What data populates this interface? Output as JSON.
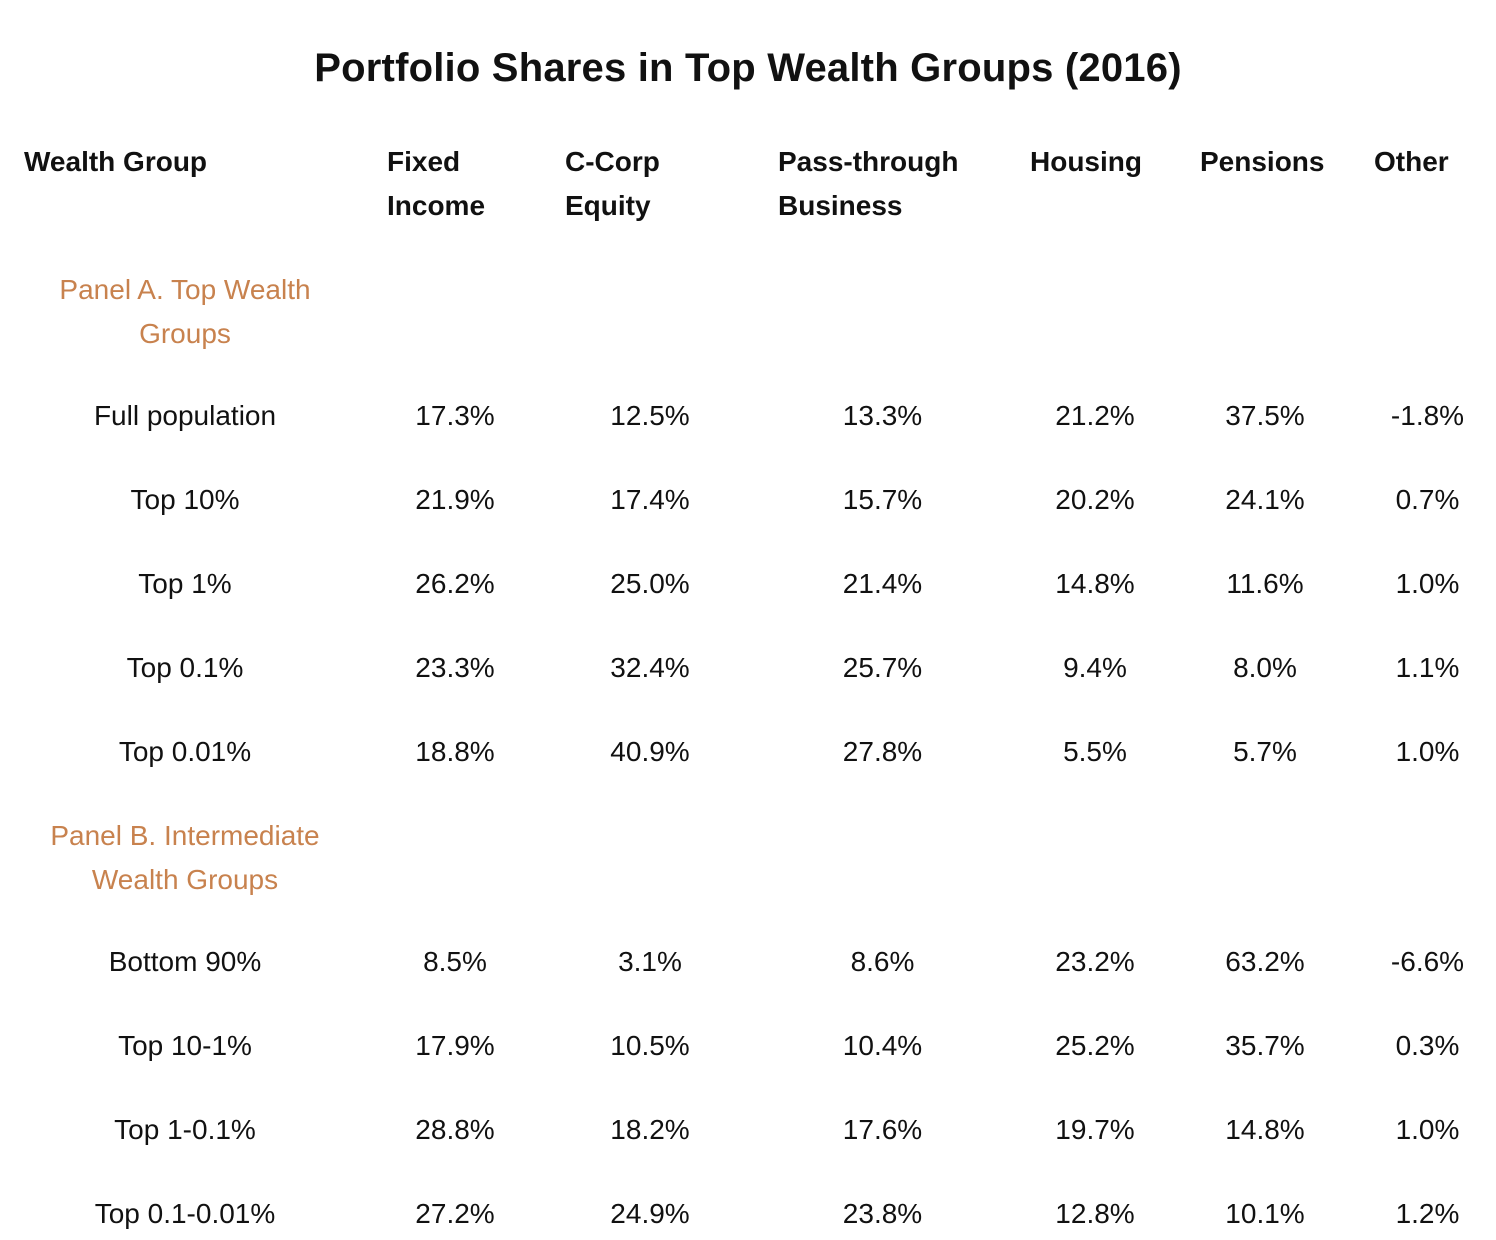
{
  "chart_data": {
    "type": "table",
    "title": "Portfolio Shares in Top Wealth Groups (2016)",
    "columns": [
      "Wealth Group",
      "Fixed\nIncome",
      "C-Corp\nEquity",
      "Pass-through\nBusiness",
      "Housing",
      "Pensions",
      "Other"
    ],
    "panels": [
      {
        "label": "Panel A. Top Wealth Groups",
        "rows": [
          {
            "group": "Full population",
            "fixed_income": "17.3%",
            "ccorp_equity": "12.5%",
            "pass_through": "13.3%",
            "housing": "21.2%",
            "pensions": "37.5%",
            "other": "-1.8%"
          },
          {
            "group": "Top 10%",
            "fixed_income": "21.9%",
            "ccorp_equity": "17.4%",
            "pass_through": "15.7%",
            "housing": "20.2%",
            "pensions": "24.1%",
            "other": "0.7%"
          },
          {
            "group": "Top 1%",
            "fixed_income": "26.2%",
            "ccorp_equity": "25.0%",
            "pass_through": "21.4%",
            "housing": "14.8%",
            "pensions": "11.6%",
            "other": "1.0%"
          },
          {
            "group": "Top 0.1%",
            "fixed_income": "23.3%",
            "ccorp_equity": "32.4%",
            "pass_through": "25.7%",
            "housing": "9.4%",
            "pensions": "8.0%",
            "other": "1.1%"
          },
          {
            "group": "Top 0.01%",
            "fixed_income": "18.8%",
            "ccorp_equity": "40.9%",
            "pass_through": "27.8%",
            "housing": "5.5%",
            "pensions": "5.7%",
            "other": "1.0%"
          }
        ]
      },
      {
        "label": "Panel B. Intermediate Wealth Groups",
        "rows": [
          {
            "group": "Bottom 90%",
            "fixed_income": "8.5%",
            "ccorp_equity": "3.1%",
            "pass_through": "8.6%",
            "housing": "23.2%",
            "pensions": "63.2%",
            "other": "-6.6%"
          },
          {
            "group": "Top 10-1%",
            "fixed_income": "17.9%",
            "ccorp_equity": "10.5%",
            "pass_through": "10.4%",
            "housing": "25.2%",
            "pensions": "35.7%",
            "other": "0.3%"
          },
          {
            "group": "Top 1-0.1%",
            "fixed_income": "28.8%",
            "ccorp_equity": "18.2%",
            "pass_through": "17.6%",
            "housing": "19.7%",
            "pensions": "14.8%",
            "other": "1.0%"
          },
          {
            "group": "Top 0.1-0.01%",
            "fixed_income": "27.2%",
            "ccorp_equity": "24.9%",
            "pass_through": "23.8%",
            "housing": "12.8%",
            "pensions": "10.1%",
            "other": "1.2%"
          }
        ]
      }
    ],
    "colors": {
      "text": "#111111",
      "panel_label": "#c8824e"
    }
  }
}
